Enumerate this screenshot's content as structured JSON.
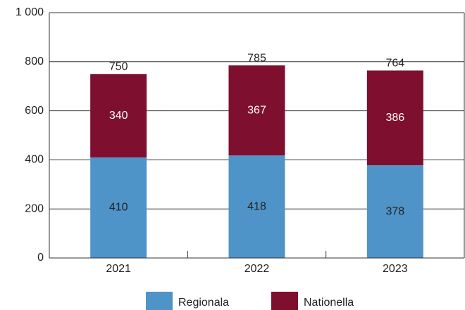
{
  "chart_data": {
    "type": "stacked_bar",
    "categories": [
      "2021",
      "2022",
      "2023"
    ],
    "series": [
      {
        "name": "Regionala",
        "color": "#4f94c8",
        "values": [
          410,
          418,
          378
        ]
      },
      {
        "name": "Nationella",
        "color": "#7e0f2f",
        "values": [
          340,
          367,
          386
        ]
      }
    ],
    "totals": [
      750,
      785,
      764
    ],
    "ylim": [
      0,
      1000
    ],
    "yticks": [
      0,
      200,
      400,
      600,
      800,
      {
        "value": 1000,
        "label": "1 000"
      }
    ],
    "grid": true,
    "legend": "bottom"
  }
}
